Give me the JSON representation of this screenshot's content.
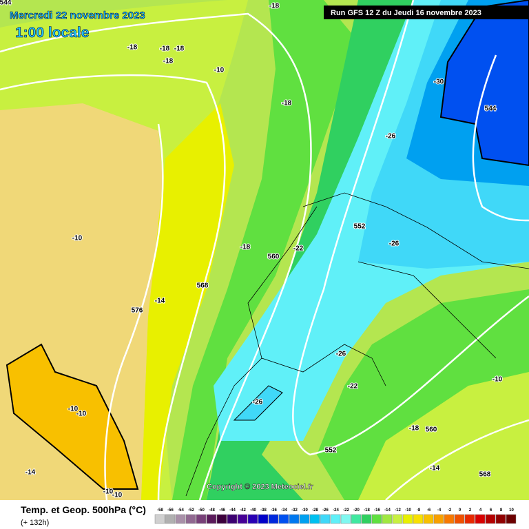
{
  "header": {
    "date": "Mercredi 22 novembre 2023",
    "time": "1:00 locale",
    "run": "Run GFS 12 Z du Jeudi 16 novembre 2023"
  },
  "map_labels": [
    "544",
    "-18",
    "-18",
    "-18",
    "-18",
    "-18",
    "-10",
    "-18",
    "-30",
    "544",
    "-26",
    "-10",
    "552",
    "-26",
    "-18",
    "-22",
    "560",
    "568",
    "-14",
    "576",
    "-26",
    "-10",
    "-22",
    "-26",
    "-10",
    "-10",
    "-18",
    "560",
    "552",
    "-14",
    "-14",
    "568",
    "-10",
    "-10"
  ],
  "copyright": "Copyright © 2023 Meteociel.fr",
  "footer": {
    "title": "Temp. et Geop. 500hPa (°C)",
    "lead": "(+ 132h)"
  },
  "colorbar": {
    "labels": [
      -58,
      -56,
      -54,
      -52,
      -50,
      -48,
      -46,
      -44,
      -42,
      -40,
      -38,
      -36,
      -34,
      -32,
      -30,
      -28,
      -26,
      -24,
      -22,
      -20,
      -18,
      -16,
      -14,
      -12,
      -10,
      -8,
      -6,
      -4,
      -2,
      0,
      2,
      4,
      6,
      8,
      10
    ],
    "colors": [
      "#d0d0d0",
      "#b0b0b0",
      "#a890a8",
      "#906890",
      "#784078",
      "#5a1a5a",
      "#3c003c",
      "#3c0070",
      "#460096",
      "#2800b4",
      "#0000c8",
      "#0028dc",
      "#0050f0",
      "#0078f0",
      "#00a0f0",
      "#00c0f0",
      "#40d8f8",
      "#60f0f8",
      "#80f8f0",
      "#40e8a0",
      "#30d060",
      "#60e040",
      "#a0e840",
      "#c8f040",
      "#e8f000",
      "#f8e000",
      "#f8c000",
      "#f8a000",
      "#f87800",
      "#f05000",
      "#e82800",
      "#d80000",
      "#b40000",
      "#900000",
      "#6c0000"
    ]
  }
}
